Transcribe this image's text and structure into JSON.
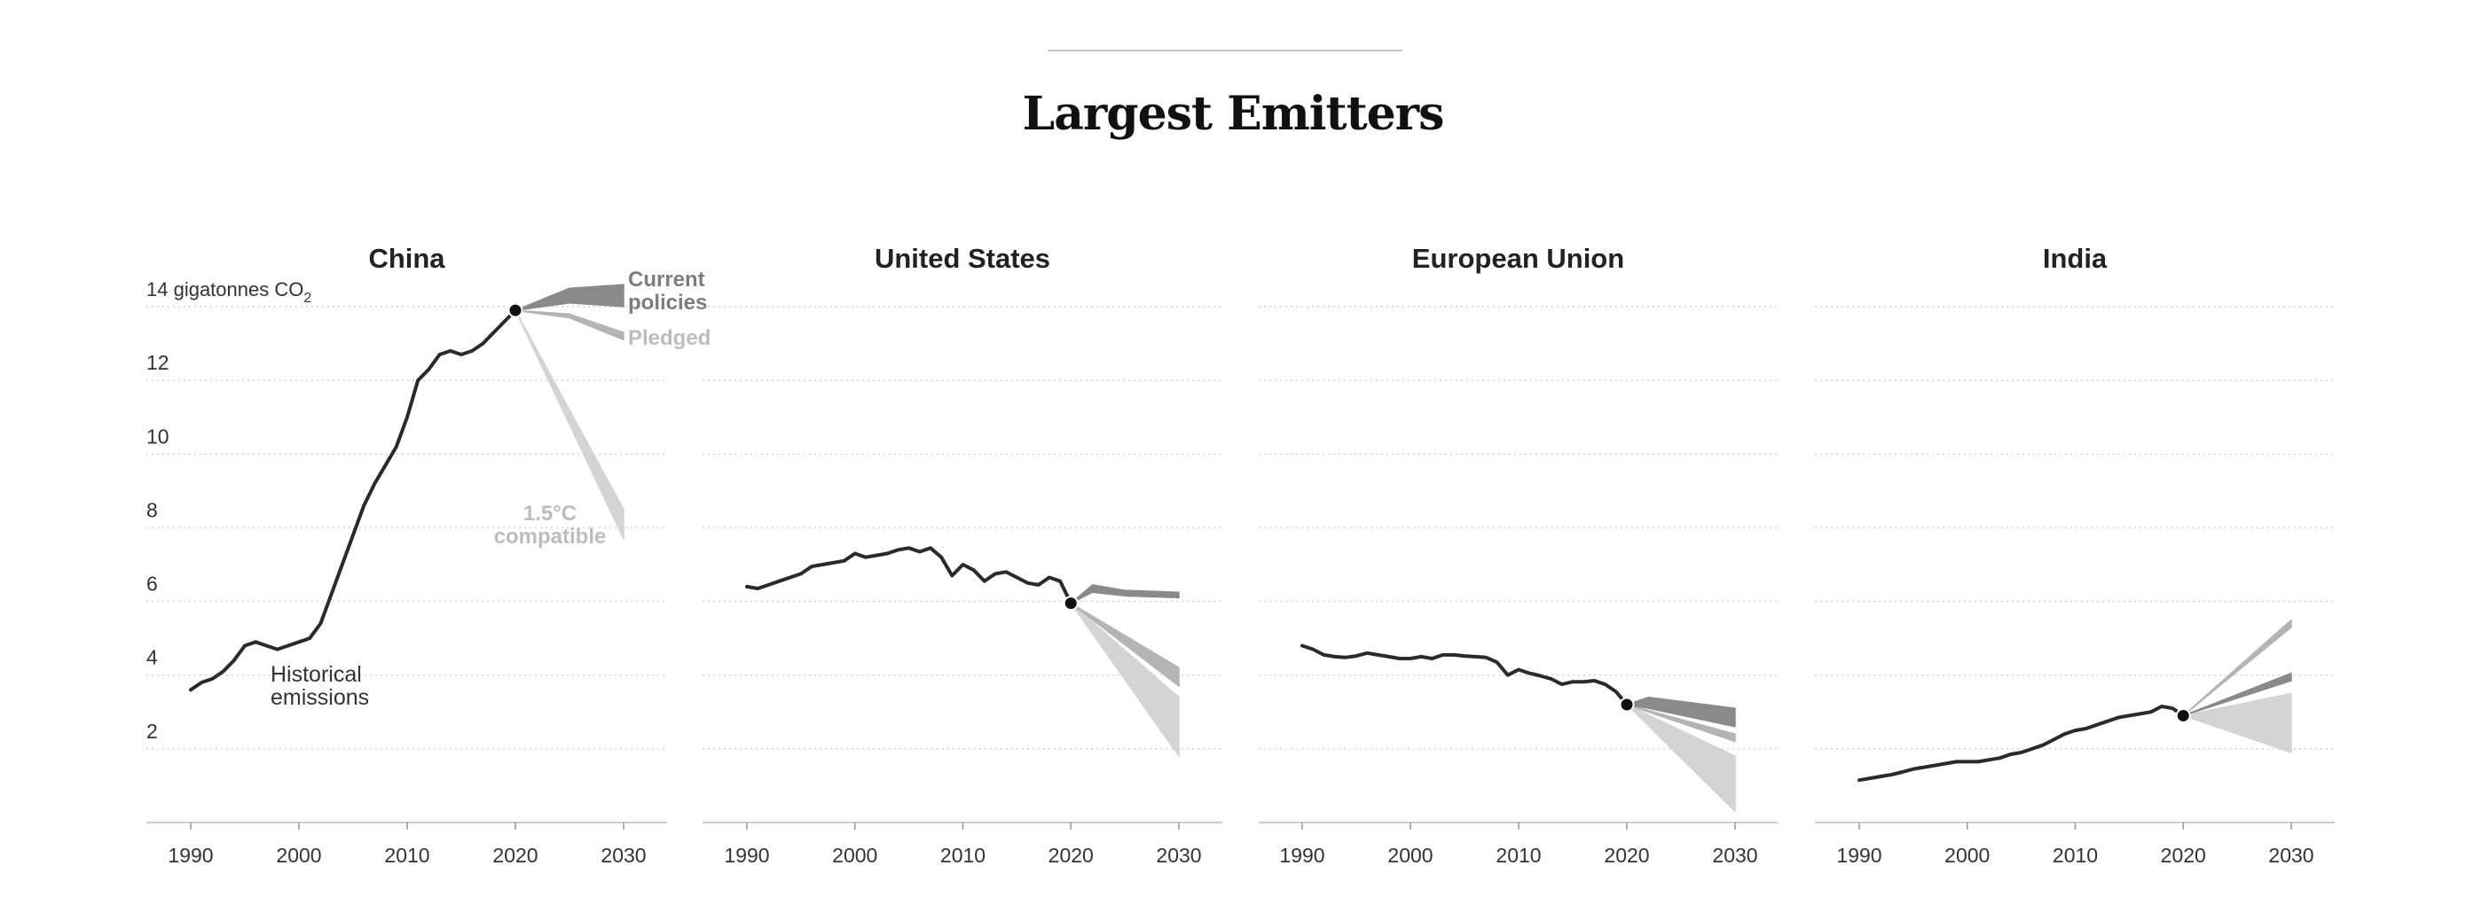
{
  "title": "Largest Emitters",
  "y_axis_label": "14 gigatonnes CO",
  "y_axis_label_sub": "2",
  "annotations": {
    "current_policies": [
      "Current",
      "policies"
    ],
    "pledged": "Pledged",
    "compatible": [
      "1.5°C",
      "compatible"
    ],
    "historical": [
      "Historical",
      "emissions"
    ]
  },
  "colors": {
    "historical": "#2a2a2a",
    "current_policies": "#8a8a8a",
    "pledged": "#b4b4b4",
    "compatible": "#d4d4d4"
  },
  "chart_data": [
    {
      "type": "line",
      "title": "China",
      "xlim": [
        1990,
        2030
      ],
      "ylim": [
        0,
        14
      ],
      "x_ticks": [
        1990,
        2000,
        2010,
        2020,
        2030
      ],
      "y_ticks": [
        14,
        12,
        10,
        8,
        6,
        4,
        2
      ],
      "y_tick_labels": [
        "",
        "12",
        "10",
        "8",
        "6",
        "4",
        "2"
      ],
      "historical": {
        "x": [
          1990,
          1991,
          1992,
          1993,
          1994,
          1995,
          1996,
          1997,
          1998,
          1999,
          2000,
          2001,
          2002,
          2003,
          2004,
          2005,
          2006,
          2007,
          2008,
          2009,
          2010,
          2011,
          2012,
          2013,
          2014,
          2015,
          2016,
          2017,
          2018,
          2019,
          2020
        ],
        "y": [
          3.6,
          3.8,
          3.9,
          4.1,
          4.4,
          4.8,
          4.9,
          4.8,
          4.7,
          4.8,
          4.9,
          5.0,
          5.4,
          6.2,
          7.0,
          7.8,
          8.6,
          9.2,
          9.7,
          10.2,
          11.0,
          12.0,
          12.3,
          12.7,
          12.8,
          12.7,
          12.8,
          13.0,
          13.3,
          13.6,
          13.9
        ]
      },
      "projections": [
        {
          "name": "Current policies",
          "x": [
            2020,
            2025,
            2030
          ],
          "upper": [
            13.9,
            14.5,
            14.6
          ],
          "lower": [
            13.9,
            14.1,
            14.0
          ]
        },
        {
          "name": "Pledged",
          "x": [
            2020,
            2025,
            2030
          ],
          "upper": [
            13.9,
            13.8,
            13.3
          ],
          "lower": [
            13.9,
            13.7,
            13.1
          ]
        },
        {
          "name": "1.5°C compatible",
          "x": [
            2020,
            2030
          ],
          "upper": [
            13.9,
            8.5
          ],
          "lower": [
            13.9,
            7.7
          ]
        }
      ]
    },
    {
      "type": "line",
      "title": "United States",
      "xlim": [
        1990,
        2030
      ],
      "ylim": [
        0,
        14
      ],
      "x_ticks": [
        1990,
        2000,
        2010,
        2020,
        2030
      ],
      "y_ticks": [
        14,
        12,
        10,
        8,
        6,
        4,
        2
      ],
      "historical": {
        "x": [
          1990,
          1991,
          1992,
          1993,
          1994,
          1995,
          1996,
          1997,
          1998,
          1999,
          2000,
          2001,
          2002,
          2003,
          2004,
          2005,
          2006,
          2007,
          2008,
          2009,
          2010,
          2011,
          2012,
          2013,
          2014,
          2015,
          2016,
          2017,
          2018,
          2019,
          2020
        ],
        "y": [
          6.4,
          6.35,
          6.45,
          6.55,
          6.65,
          6.75,
          6.95,
          7.0,
          7.05,
          7.1,
          7.3,
          7.2,
          7.25,
          7.3,
          7.4,
          7.45,
          7.35,
          7.45,
          7.2,
          6.7,
          7.0,
          6.85,
          6.55,
          6.75,
          6.8,
          6.65,
          6.5,
          6.45,
          6.65,
          6.55,
          5.95
        ]
      },
      "projections": [
        {
          "name": "Current policies",
          "x": [
            2020,
            2022,
            2025,
            2030
          ],
          "upper": [
            5.95,
            6.45,
            6.3,
            6.25
          ],
          "lower": [
            5.95,
            6.25,
            6.15,
            6.1
          ]
        },
        {
          "name": "Pledged",
          "x": [
            2020,
            2030
          ],
          "upper": [
            5.95,
            4.2
          ],
          "lower": [
            5.95,
            3.7
          ]
        },
        {
          "name": "1.5°C compatible",
          "x": [
            2020,
            2030
          ],
          "upper": [
            5.95,
            3.4
          ],
          "lower": [
            5.95,
            1.8
          ]
        }
      ]
    },
    {
      "type": "line",
      "title": "European Union",
      "xlim": [
        1990,
        2030
      ],
      "ylim": [
        0,
        14
      ],
      "x_ticks": [
        1990,
        2000,
        2010,
        2020,
        2030
      ],
      "y_ticks": [
        14,
        12,
        10,
        8,
        6,
        4,
        2
      ],
      "historical": {
        "x": [
          1990,
          1991,
          1992,
          1993,
          1994,
          1995,
          1996,
          1997,
          1998,
          1999,
          2000,
          2001,
          2002,
          2003,
          2004,
          2005,
          2006,
          2007,
          2008,
          2009,
          2010,
          2011,
          2012,
          2013,
          2014,
          2015,
          2016,
          2017,
          2018,
          2019,
          2020
        ],
        "y": [
          4.8,
          4.7,
          4.55,
          4.5,
          4.48,
          4.52,
          4.6,
          4.55,
          4.5,
          4.45,
          4.45,
          4.5,
          4.45,
          4.55,
          4.55,
          4.52,
          4.5,
          4.48,
          4.35,
          4.0,
          4.15,
          4.05,
          3.98,
          3.9,
          3.75,
          3.82,
          3.82,
          3.85,
          3.75,
          3.55,
          3.2
        ]
      },
      "projections": [
        {
          "name": "Current policies",
          "x": [
            2020,
            2022,
            2030
          ],
          "upper": [
            3.2,
            3.4,
            3.1
          ],
          "lower": [
            3.2,
            3.1,
            2.6
          ]
        },
        {
          "name": "Pledged",
          "x": [
            2020,
            2030
          ],
          "upper": [
            3.2,
            2.4
          ],
          "lower": [
            3.2,
            2.2
          ]
        },
        {
          "name": "1.5°C compatible",
          "x": [
            2020,
            2030
          ],
          "upper": [
            3.2,
            1.8
          ],
          "lower": [
            3.2,
            0.3
          ]
        }
      ]
    },
    {
      "type": "line",
      "title": "India",
      "xlim": [
        1990,
        2030
      ],
      "ylim": [
        0,
        14
      ],
      "x_ticks": [
        1990,
        2000,
        2010,
        2020,
        2030
      ],
      "y_ticks": [
        14,
        12,
        10,
        8,
        6,
        4,
        2
      ],
      "historical": {
        "x": [
          1990,
          1991,
          1992,
          1993,
          1994,
          1995,
          1996,
          1997,
          1998,
          1999,
          2000,
          2001,
          2002,
          2003,
          2004,
          2005,
          2006,
          2007,
          2008,
          2009,
          2010,
          2011,
          2012,
          2013,
          2014,
          2015,
          2016,
          2017,
          2018,
          2019,
          2020
        ],
        "y": [
          1.15,
          1.2,
          1.25,
          1.3,
          1.37,
          1.45,
          1.5,
          1.55,
          1.6,
          1.65,
          1.65,
          1.65,
          1.7,
          1.75,
          1.85,
          1.9,
          2.0,
          2.1,
          2.25,
          2.4,
          2.5,
          2.55,
          2.65,
          2.75,
          2.85,
          2.9,
          2.95,
          3.0,
          3.15,
          3.1,
          2.9
        ]
      },
      "projections": [
        {
          "name": "Current policies",
          "x": [
            2020,
            2030
          ],
          "upper": [
            2.9,
            4.05
          ],
          "lower": [
            2.9,
            3.85
          ]
        },
        {
          "name": "Pledged",
          "x": [
            2020,
            2030
          ],
          "upper": [
            2.9,
            5.5
          ],
          "lower": [
            2.9,
            5.3
          ]
        },
        {
          "name": "1.5°C compatible",
          "x": [
            2020,
            2030
          ],
          "upper": [
            2.9,
            3.5
          ],
          "lower": [
            2.9,
            1.9
          ]
        }
      ]
    }
  ]
}
